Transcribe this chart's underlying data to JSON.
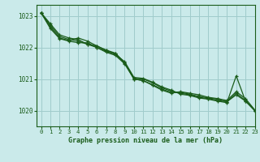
{
  "title": "Graphe pression niveau de la mer (hPa)",
  "bg_color": "#caeaea",
  "grid_color": "#a0cccc",
  "line_color": "#1a5c1a",
  "xlim": [
    -0.5,
    23
  ],
  "ylim": [
    1019.5,
    1023.35
  ],
  "yticks": [
    1020,
    1021,
    1022,
    1023
  ],
  "xticks": [
    0,
    1,
    2,
    3,
    4,
    5,
    6,
    7,
    8,
    9,
    10,
    11,
    12,
    13,
    14,
    15,
    16,
    17,
    18,
    19,
    20,
    21,
    22,
    23
  ],
  "series": [
    [
      1023.1,
      1022.75,
      1022.4,
      1022.3,
      1022.25,
      1022.1,
      1022.05,
      1021.9,
      1021.8,
      1021.5,
      1021.0,
      1020.95,
      1020.8,
      1020.65,
      1020.55,
      1020.6,
      1020.55,
      1020.5,
      1020.42,
      1020.38,
      1020.32,
      1020.6,
      1020.38,
      1020.02
    ],
    [
      1023.1,
      1022.7,
      1022.35,
      1022.25,
      1022.2,
      1022.1,
      1022.0,
      1021.85,
      1021.75,
      1021.48,
      1021.0,
      1020.95,
      1020.82,
      1020.68,
      1020.58,
      1020.58,
      1020.52,
      1020.45,
      1020.4,
      1020.36,
      1020.28,
      1020.55,
      1020.32,
      1020.0
    ],
    [
      1023.1,
      1022.65,
      1022.3,
      1022.22,
      1022.3,
      1022.2,
      1022.05,
      1021.92,
      1021.82,
      1021.52,
      1021.02,
      1021.0,
      1020.88,
      1020.72,
      1020.62,
      1020.55,
      1020.5,
      1020.42,
      1020.38,
      1020.32,
      1020.28,
      1020.5,
      1020.3,
      1020.0
    ],
    [
      1023.1,
      1022.6,
      1022.28,
      1022.2,
      1022.15,
      1022.15,
      1022.0,
      1021.88,
      1021.78,
      1021.55,
      1021.05,
      1021.02,
      1020.9,
      1020.75,
      1020.65,
      1020.52,
      1020.48,
      1020.4,
      1020.36,
      1020.3,
      1020.25,
      1021.1,
      1020.3,
      1020.0
    ]
  ]
}
